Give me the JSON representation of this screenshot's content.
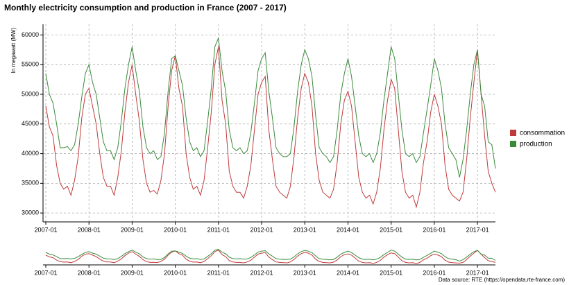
{
  "chart_data": {
    "type": "line",
    "title": "Monthly electricity consumption and production in France (2007 - 2017)",
    "y_label": "In megawatt (MW)",
    "source": "Data source: RTE (https://opendata.rte-france.com)",
    "x": [
      "2007-01",
      "2007-02",
      "2007-03",
      "2007-04",
      "2007-05",
      "2007-06",
      "2007-07",
      "2007-08",
      "2007-09",
      "2007-10",
      "2007-11",
      "2007-12",
      "2008-01",
      "2008-02",
      "2008-03",
      "2008-04",
      "2008-05",
      "2008-06",
      "2008-07",
      "2008-08",
      "2008-09",
      "2008-10",
      "2008-11",
      "2008-12",
      "2009-01",
      "2009-02",
      "2009-03",
      "2009-04",
      "2009-05",
      "2009-06",
      "2009-07",
      "2009-08",
      "2009-09",
      "2009-10",
      "2009-11",
      "2009-12",
      "2010-01",
      "2010-02",
      "2010-03",
      "2010-04",
      "2010-05",
      "2010-06",
      "2010-07",
      "2010-08",
      "2010-09",
      "2010-10",
      "2010-11",
      "2010-12",
      "2011-01",
      "2011-02",
      "2011-03",
      "2011-04",
      "2011-05",
      "2011-06",
      "2011-07",
      "2011-08",
      "2011-09",
      "2011-10",
      "2011-11",
      "2011-12",
      "2012-01",
      "2012-02",
      "2012-03",
      "2012-04",
      "2012-05",
      "2012-06",
      "2012-07",
      "2012-08",
      "2012-09",
      "2012-10",
      "2012-11",
      "2012-12",
      "2013-01",
      "2013-02",
      "2013-03",
      "2013-04",
      "2013-05",
      "2013-06",
      "2013-07",
      "2013-08",
      "2013-09",
      "2013-10",
      "2013-11",
      "2013-12",
      "2014-01",
      "2014-02",
      "2014-03",
      "2014-04",
      "2014-05",
      "2014-06",
      "2014-07",
      "2014-08",
      "2014-09",
      "2014-10",
      "2014-11",
      "2014-12",
      "2015-01",
      "2015-02",
      "2015-03",
      "2015-04",
      "2015-05",
      "2015-06",
      "2015-07",
      "2015-08",
      "2015-09",
      "2015-10",
      "2015-11",
      "2015-12",
      "2016-01",
      "2016-02",
      "2016-03",
      "2016-04",
      "2016-05",
      "2016-06",
      "2016-07",
      "2016-08",
      "2016-09",
      "2016-10",
      "2016-11",
      "2016-12",
      "2017-01",
      "2017-02",
      "2017-03",
      "2017-04",
      "2017-05",
      "2017-06"
    ],
    "series": [
      {
        "name": "consommation",
        "color": "#c0393b",
        "values": [
          48000,
          44500,
          43000,
          38000,
          35000,
          34000,
          34500,
          33000,
          35500,
          39500,
          46000,
          50000,
          51000,
          48000,
          45000,
          40000,
          36000,
          34500,
          34500,
          33000,
          36000,
          40500,
          47000,
          52000,
          55000,
          50000,
          45500,
          39000,
          35000,
          33500,
          33800,
          33200,
          35500,
          40000,
          48000,
          54000,
          56500,
          51000,
          48000,
          40000,
          36000,
          34000,
          34500,
          33000,
          35500,
          41000,
          47000,
          55000,
          58000,
          49000,
          45000,
          37000,
          34500,
          33500,
          33500,
          32500,
          34500,
          38000,
          44000,
          50000,
          52000,
          53000,
          44000,
          39000,
          34500,
          33500,
          33000,
          32500,
          34500,
          39500,
          46000,
          51000,
          53500,
          52000,
          48000,
          40000,
          35500,
          33500,
          33000,
          32500,
          34000,
          38500,
          45000,
          49000,
          50500,
          48000,
          42000,
          36000,
          33500,
          32500,
          33000,
          31500,
          33500,
          37500,
          44000,
          49000,
          52500,
          51000,
          44000,
          37000,
          33500,
          32500,
          33000,
          31000,
          33500,
          38500,
          42000,
          47000,
          50000,
          48000,
          45000,
          38000,
          34000,
          33000,
          32500,
          32000,
          33500,
          39000,
          46000,
          52000,
          57500,
          50000,
          43000,
          37000,
          35000,
          33500
        ]
      },
      {
        "name": "production",
        "color": "#3a8a3a",
        "values": [
          53500,
          50000,
          48500,
          45000,
          41000,
          41000,
          41200,
          40500,
          41500,
          45000,
          49500,
          53500,
          55000,
          52000,
          50000,
          46000,
          42000,
          40500,
          40500,
          39000,
          41000,
          45500,
          51000,
          55000,
          58000,
          54000,
          50500,
          44500,
          41000,
          40000,
          40500,
          39000,
          39500,
          43500,
          50500,
          56000,
          56500,
          54000,
          51500,
          46000,
          42000,
          40500,
          41000,
          39500,
          40500,
          45500,
          51000,
          58000,
          59500,
          54000,
          50500,
          44000,
          41000,
          40500,
          41000,
          40000,
          40500,
          43500,
          48500,
          54000,
          56000,
          57000,
          50500,
          46000,
          41000,
          40000,
          39500,
          39500,
          40000,
          44500,
          50500,
          55000,
          57500,
          56000,
          53000,
          46500,
          41000,
          40000,
          39500,
          38500,
          39500,
          44000,
          50000,
          53500,
          56000,
          53000,
          48000,
          43000,
          40000,
          39500,
          40000,
          38500,
          40000,
          43500,
          49000,
          53500,
          58000,
          56000,
          50000,
          44000,
          40000,
          39500,
          40000,
          38500,
          39500,
          43500,
          47500,
          51500,
          56000,
          54000,
          51000,
          45000,
          41000,
          40000,
          39000,
          36000,
          39000,
          44000,
          50000,
          55000,
          57500,
          50000,
          48000,
          42000,
          41500,
          37500
        ]
      }
    ],
    "xticks": [
      "2007-01",
      "2008-01",
      "2009-01",
      "2010-01",
      "2011-01",
      "2012-01",
      "2013-01",
      "2014-01",
      "2015-01",
      "2016-01",
      "2017-01"
    ],
    "ylim": [
      28500,
      61800
    ],
    "yticks": [
      30000,
      35000,
      40000,
      45000,
      50000,
      55000,
      60000
    ],
    "grid": true,
    "legend": "right"
  }
}
